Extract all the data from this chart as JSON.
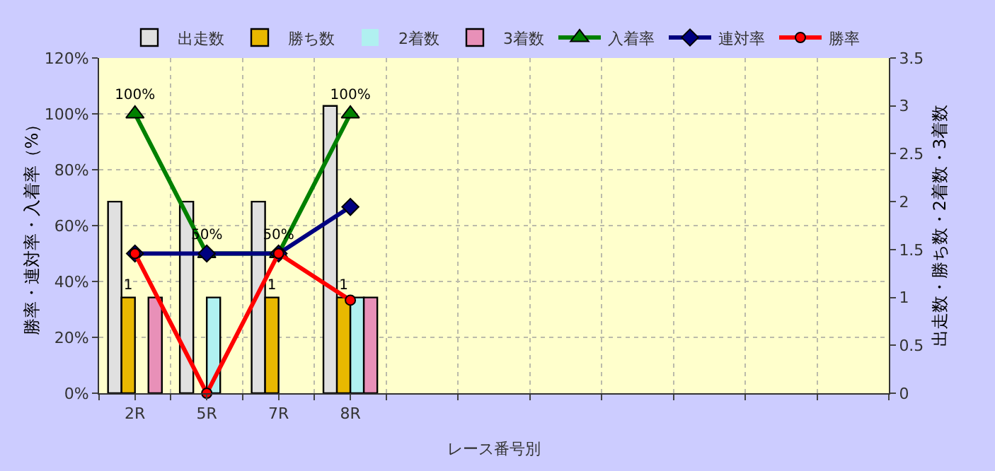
{
  "chart_data": {
    "type": "bar",
    "xlabel": "レース番号別",
    "ylabel": "勝率・連対率・入着率（%）",
    "y2label": "出走数・勝ち数・2着数・3着数",
    "categories": [
      "2R",
      "5R",
      "7R",
      "8R",
      null,
      null,
      null,
      null,
      null,
      null,
      null
    ],
    "series": [
      {
        "name": "出走数",
        "axis": "y2",
        "color": "#e0e0e0",
        "values": [
          2,
          2,
          2,
          3,
          null,
          null,
          null,
          null,
          null,
          null,
          null
        ]
      },
      {
        "name": "勝ち数",
        "axis": "y2",
        "color": "#e8b800",
        "values": [
          1,
          0,
          1,
          1,
          null,
          null,
          null,
          null,
          null,
          null,
          null
        ],
        "value_labels": [
          "1",
          null,
          "1",
          "1",
          null,
          null,
          null,
          null,
          null,
          null,
          null
        ]
      },
      {
        "name": "2着数",
        "axis": "y2",
        "color": "#b0f0f0",
        "values": [
          0,
          1,
          0,
          1,
          null,
          null,
          null,
          null,
          null,
          null,
          null
        ]
      },
      {
        "name": "3着数",
        "axis": "y2",
        "color": "#e890b8",
        "values": [
          1,
          0,
          0,
          1,
          null,
          null,
          null,
          null,
          null,
          null,
          null
        ]
      },
      {
        "name": "入着率",
        "type": "line",
        "color": "#008000",
        "marker": "triangle",
        "values": [
          100,
          50,
          50,
          100,
          null,
          null,
          null,
          null,
          null,
          null,
          null
        ],
        "value_labels": [
          "100%",
          "50%",
          "50%",
          "100%",
          null,
          null,
          null,
          null,
          null,
          null,
          null
        ]
      },
      {
        "name": "連対率",
        "type": "line",
        "color": "#000080",
        "marker": "diamond",
        "values": [
          50,
          50,
          50,
          66.7,
          null,
          null,
          null,
          null,
          null,
          null,
          null
        ]
      },
      {
        "name": "勝率",
        "type": "line",
        "color": "#ff0000",
        "marker": "circle",
        "values": [
          50,
          0,
          50,
          33.3,
          null,
          null,
          null,
          null,
          null,
          null,
          null
        ]
      }
    ],
    "ylim": [
      0,
      120
    ],
    "yticks": [
      {
        "value": 0,
        "label": "0%"
      },
      {
        "value": 20,
        "label": "20%"
      },
      {
        "value": 40,
        "label": "40%"
      },
      {
        "value": 60,
        "label": "60%"
      },
      {
        "value": 80,
        "label": "80%"
      },
      {
        "value": 100,
        "label": "100%"
      },
      {
        "value": 120,
        "label": "120%"
      }
    ],
    "y2lim": [
      0,
      3.5
    ],
    "y2ticks": [
      0,
      0.5,
      1,
      1.5,
      2,
      2.5,
      3,
      3.5
    ],
    "grid": true,
    "legend": "top"
  }
}
